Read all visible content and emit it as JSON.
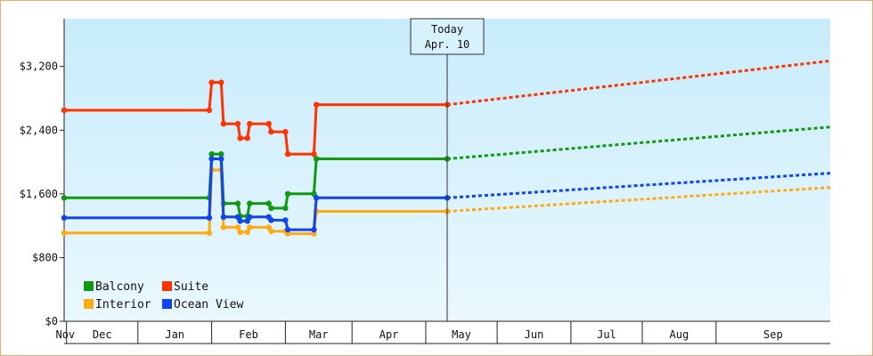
{
  "chart_data": {
    "type": "line",
    "title": "",
    "xlabel": "",
    "ylabel": "",
    "x_ticks": [
      "Nov",
      "Dec",
      "Jan",
      "Feb",
      "Mar",
      "Apr",
      "May",
      "Jun",
      "Jul",
      "Aug",
      "Sep"
    ],
    "y_ticks": [
      {
        "value": 0,
        "label": "$0"
      },
      {
        "value": 800,
        "label": "$800"
      },
      {
        "value": 1600,
        "label": "$1,600"
      },
      {
        "value": 2400,
        "label": "$2,400"
      },
      {
        "value": 3200,
        "label": "$3,200"
      }
    ],
    "ylim": [
      0,
      3800
    ],
    "xlim": [
      "2021-10-31",
      "2022-09-18"
    ],
    "grid": false,
    "legend_position": "bottom-left",
    "today": {
      "line1": "Today",
      "line2": "Apr. 10",
      "date": "2022-04-10"
    },
    "series": [
      {
        "name": "Balcony",
        "color": "#119911",
        "history": [
          [
            "2021-10-31",
            1550
          ],
          [
            "2021-12-31",
            1550
          ],
          [
            "2022-01-01",
            2100
          ],
          [
            "2022-01-05",
            2100
          ],
          [
            "2022-01-06",
            1480
          ],
          [
            "2022-01-12",
            1480
          ],
          [
            "2022-01-13",
            1320
          ],
          [
            "2022-01-16",
            1320
          ],
          [
            "2022-01-17",
            1480
          ],
          [
            "2022-01-25",
            1480
          ],
          [
            "2022-01-26",
            1420
          ],
          [
            "2022-02-01",
            1420
          ],
          [
            "2022-02-02",
            1600
          ],
          [
            "2022-02-13",
            1600
          ],
          [
            "2022-02-14",
            2040
          ],
          [
            "2022-04-10",
            2040
          ]
        ],
        "forecast": [
          [
            "2022-04-10",
            2040
          ],
          [
            "2022-09-18",
            2440
          ]
        ]
      },
      {
        "name": "Suite",
        "color": "#ff3300",
        "history": [
          [
            "2021-10-31",
            2650
          ],
          [
            "2021-12-31",
            2650
          ],
          [
            "2022-01-01",
            3000
          ],
          [
            "2022-01-05",
            3000
          ],
          [
            "2022-01-06",
            2480
          ],
          [
            "2022-01-12",
            2480
          ],
          [
            "2022-01-13",
            2300
          ],
          [
            "2022-01-16",
            2300
          ],
          [
            "2022-01-17",
            2480
          ],
          [
            "2022-01-25",
            2480
          ],
          [
            "2022-01-26",
            2380
          ],
          [
            "2022-02-01",
            2380
          ],
          [
            "2022-02-02",
            2100
          ],
          [
            "2022-02-13",
            2100
          ],
          [
            "2022-02-14",
            2720
          ],
          [
            "2022-04-10",
            2720
          ]
        ],
        "forecast": [
          [
            "2022-04-10",
            2720
          ],
          [
            "2022-09-18",
            3270
          ]
        ]
      },
      {
        "name": "Interior",
        "color": "#ffaa11",
        "history": [
          [
            "2021-10-31",
            1110
          ],
          [
            "2021-12-31",
            1110
          ],
          [
            "2022-01-01",
            1900
          ],
          [
            "2022-01-05",
            1900
          ],
          [
            "2022-01-06",
            1180
          ],
          [
            "2022-01-12",
            1180
          ],
          [
            "2022-01-13",
            1120
          ],
          [
            "2022-01-16",
            1120
          ],
          [
            "2022-01-17",
            1180
          ],
          [
            "2022-01-25",
            1180
          ],
          [
            "2022-01-26",
            1130
          ],
          [
            "2022-02-01",
            1130
          ],
          [
            "2022-02-02",
            1100
          ],
          [
            "2022-02-13",
            1100
          ],
          [
            "2022-02-14",
            1380
          ],
          [
            "2022-04-10",
            1380
          ]
        ],
        "forecast": [
          [
            "2022-04-10",
            1380
          ],
          [
            "2022-09-18",
            1680
          ]
        ]
      },
      {
        "name": "Ocean View",
        "color": "#1144ee",
        "history": [
          [
            "2021-10-31",
            1300
          ],
          [
            "2021-12-31",
            1300
          ],
          [
            "2022-01-01",
            2040
          ],
          [
            "2022-01-05",
            2040
          ],
          [
            "2022-01-06",
            1310
          ],
          [
            "2022-01-12",
            1310
          ],
          [
            "2022-01-13",
            1260
          ],
          [
            "2022-01-16",
            1260
          ],
          [
            "2022-01-17",
            1310
          ],
          [
            "2022-01-25",
            1310
          ],
          [
            "2022-01-26",
            1270
          ],
          [
            "2022-02-01",
            1270
          ],
          [
            "2022-02-02",
            1150
          ],
          [
            "2022-02-13",
            1150
          ],
          [
            "2022-02-14",
            1550
          ],
          [
            "2022-04-10",
            1550
          ]
        ],
        "forecast": [
          [
            "2022-04-10",
            1550
          ],
          [
            "2022-09-18",
            1860
          ]
        ]
      }
    ]
  }
}
